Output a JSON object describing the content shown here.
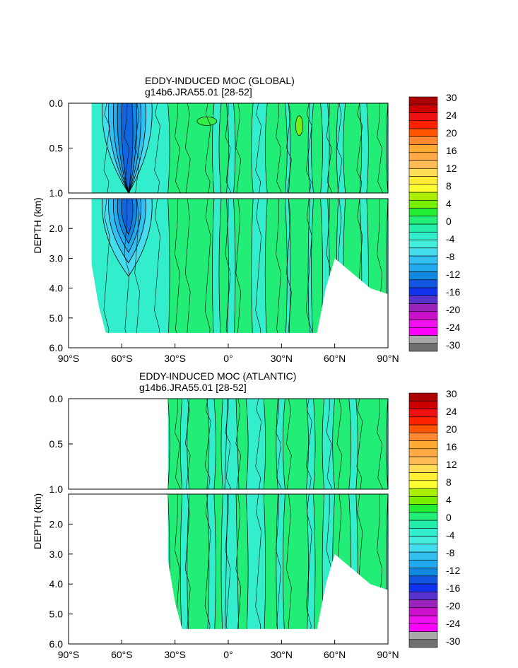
{
  "chart_data": [
    {
      "type": "heatmap",
      "subtype": "filled-contour",
      "title": "EDDY-INDUCED MOC (GLOBAL)",
      "subtitle": "g14b6.JRA55.01 [28-52]",
      "xlabel": "",
      "ylabel": "DEPTH (km)",
      "xlim": [
        -90,
        90
      ],
      "ylim_upper": [
        0.0,
        1.0
      ],
      "ylim_lower": [
        1.0,
        6.0
      ],
      "x_tick_labels": [
        "90°S",
        "60°S",
        "30°S",
        "0°",
        "30°N",
        "60°N",
        "90°N"
      ],
      "y_tick_labels_upper": [
        "0.0",
        "0.5",
        "1.0"
      ],
      "y_tick_labels_lower": [
        "2.0",
        "3.0",
        "4.0",
        "5.0",
        "6.0"
      ],
      "colorbar": {
        "labels": [
          "30",
          "24",
          "20",
          "16",
          "12",
          "8",
          "4",
          "0",
          "-4",
          "-8",
          "-12",
          "-16",
          "-20",
          "-24",
          "-30"
        ]
      },
      "features": [
        {
          "lat": -57,
          "depth": 2.0,
          "value": -16
        },
        {
          "lat": -50,
          "depth": 0.5,
          "value": -8
        },
        {
          "lat": 40,
          "depth": 0.3,
          "value": 4
        }
      ]
    },
    {
      "type": "heatmap",
      "subtype": "filled-contour",
      "title": "EDDY-INDUCED MOC (ATLANTIC)",
      "subtitle": "g14b6.JRA55.01 [28-52]",
      "xlabel": "",
      "ylabel": "DEPTH (km)",
      "xlim": [
        -90,
        90
      ],
      "ylim_upper": [
        0.0,
        1.0
      ],
      "ylim_lower": [
        1.0,
        6.0
      ],
      "x_tick_labels": [
        "90°S",
        "60°S",
        "30°S",
        "0°",
        "30°N",
        "60°N",
        "90°N"
      ],
      "y_tick_labels_upper": [
        "0.0",
        "0.5",
        "1.0"
      ],
      "y_tick_labels_lower": [
        "2.0",
        "3.0",
        "4.0",
        "5.0",
        "6.0"
      ],
      "colorbar": {
        "labels": [
          "30",
          "24",
          "20",
          "16",
          "12",
          "8",
          "4",
          "0",
          "-4",
          "-8",
          "-12",
          "-16",
          "-20",
          "-24",
          "-30"
        ]
      },
      "features": [
        {
          "lat": 0,
          "depth": 0.5,
          "value": 2
        },
        {
          "lat": 10,
          "depth": 3.0,
          "value": -2
        }
      ]
    }
  ],
  "colors": {
    "palette": [
      "#707070",
      "#a8a8a8",
      "#ff00ff",
      "#ee11ee",
      "#cc11cc",
      "#9922bb",
      "#5533cc",
      "#1133ee",
      "#1155e0",
      "#1188e0",
      "#22aaee",
      "#33c0f0",
      "#44ddee",
      "#44eedd",
      "#33eecc",
      "#22eeaa",
      "#22ee77",
      "#22ee33",
      "#77ee00",
      "#aaee00",
      "#ffff33",
      "#ffee33",
      "#ffdd55",
      "#ffbb55",
      "#ffaa44",
      "#ffaa33",
      "#ff8833",
      "#ff5500",
      "#ff2200",
      "#ee1111",
      "#cc0000",
      "#aa0000"
    ],
    "frame": "#000000"
  }
}
